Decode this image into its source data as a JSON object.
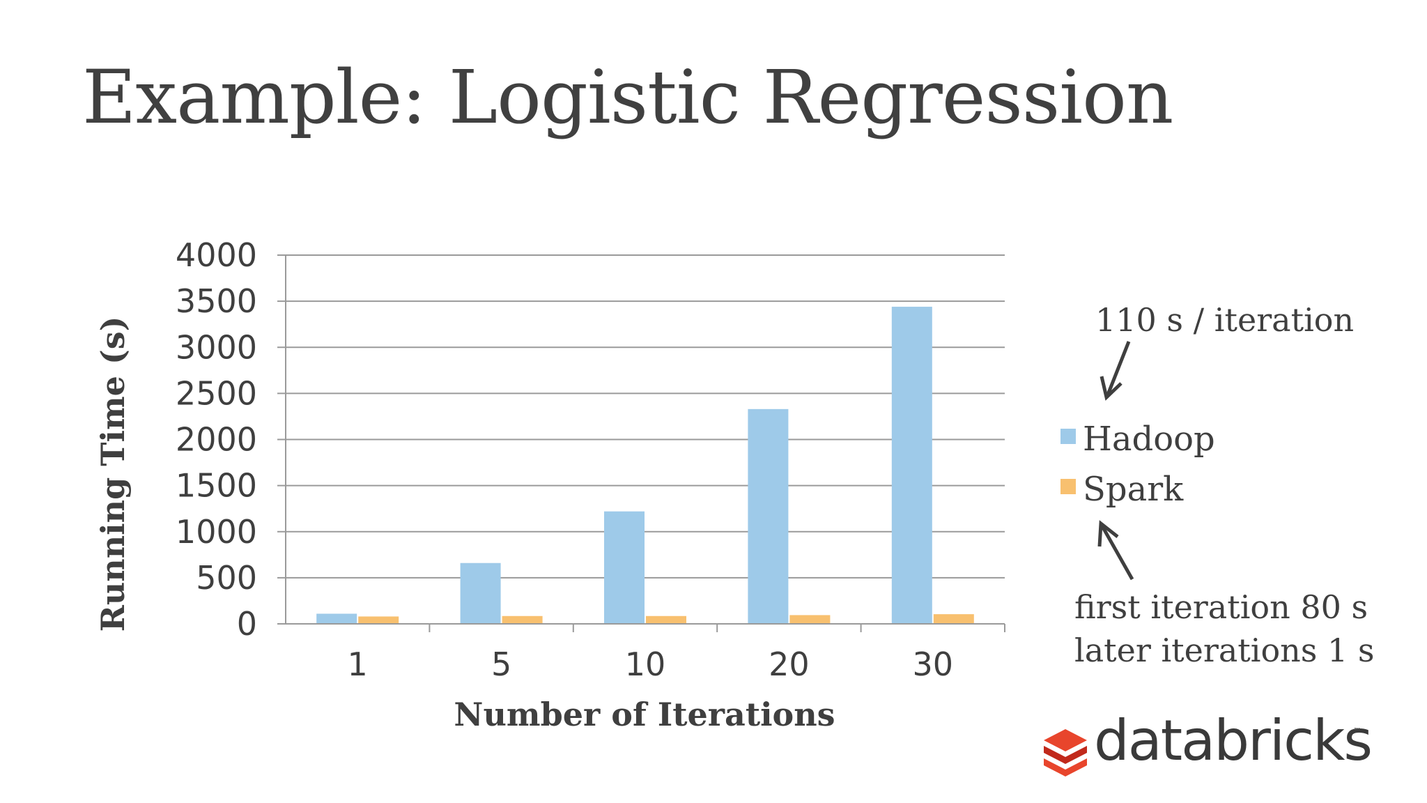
{
  "slide": {
    "title": "Example: Logistic Regression"
  },
  "chart_data": {
    "type": "bar",
    "categories": [
      "1",
      "5",
      "10",
      "20",
      "30"
    ],
    "series": [
      {
        "name": "Hadoop",
        "color": "#9ecae9",
        "values": [
          110,
          660,
          1220,
          2330,
          3440
        ]
      },
      {
        "name": "Spark",
        "color": "#f8c06f",
        "values": [
          80,
          85,
          85,
          95,
          105
        ]
      }
    ],
    "xlabel": "Number of Iterations",
    "ylabel": "Running Time (s)",
    "ylim": [
      0,
      4000
    ],
    "yticks": [
      0,
      500,
      1000,
      1500,
      2000,
      2500,
      3000,
      3500,
      4000
    ],
    "grid": true,
    "legend": "right",
    "annotations": {
      "hadoop": "110 s / iteration",
      "spark_line1": "first iteration 80 s",
      "spark_line2": "later iterations 1 s"
    }
  },
  "logo": {
    "text": "databricks",
    "tm": "™",
    "colors": [
      "#e8452c",
      "#c1291b"
    ]
  }
}
